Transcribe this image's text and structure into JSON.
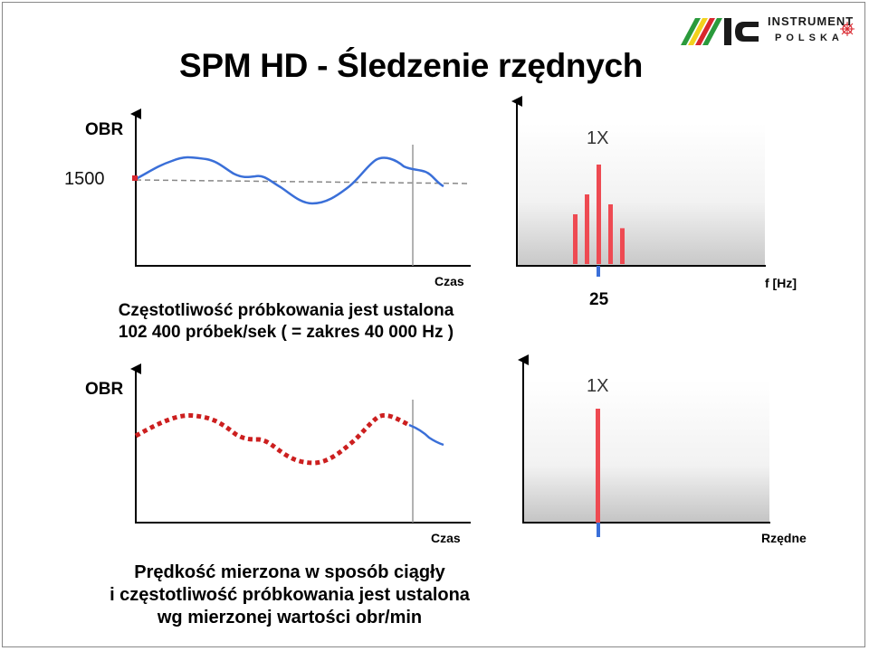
{
  "title": "SPM HD - Śledzenie rzędnych",
  "logo": {
    "line1": "INSTRUMENT",
    "line2": "POLSKA",
    "mark": "IC",
    "colors": {
      "green": "#2a9a3c",
      "yellow": "#f2d21e",
      "red": "#d9262e",
      "dark": "#1a1a1a"
    }
  },
  "top_left": {
    "ylabel": "OBR",
    "ref_label": "1500",
    "xlabel": "Czas",
    "caption_line1": "Częstotliwość próbkowania jest ustalona",
    "caption_line2": "102 400 próbek/sek ( = zakres 40 000 Hz )",
    "signal_color": "#3a6fd8",
    "ref_color": "#d9262e"
  },
  "top_right": {
    "peak_label": "1X",
    "x_tick": "25",
    "xlabel": "f [Hz]",
    "bar_color": "#ee4a52",
    "marker_color": "#3a6fd8",
    "bars": [
      0.5,
      0.7,
      1.0,
      0.6,
      0.36
    ]
  },
  "bottom_left": {
    "ylabel": "OBR",
    "xlabel": "Czas",
    "caption_line1": "Prędkość mierzona w sposób ciągły",
    "caption_line2": "i częstotliwość próbkowania jest ustalona",
    "caption_line3": "wg mierzonej wartości obr/min",
    "dotted_color": "#cc1f1f",
    "signal_color": "#3a6fd8"
  },
  "bottom_right": {
    "peak_label": "1X",
    "xlabel": "Rzędne",
    "bar_color": "#ee4a52",
    "marker_color": "#3a6fd8"
  }
}
